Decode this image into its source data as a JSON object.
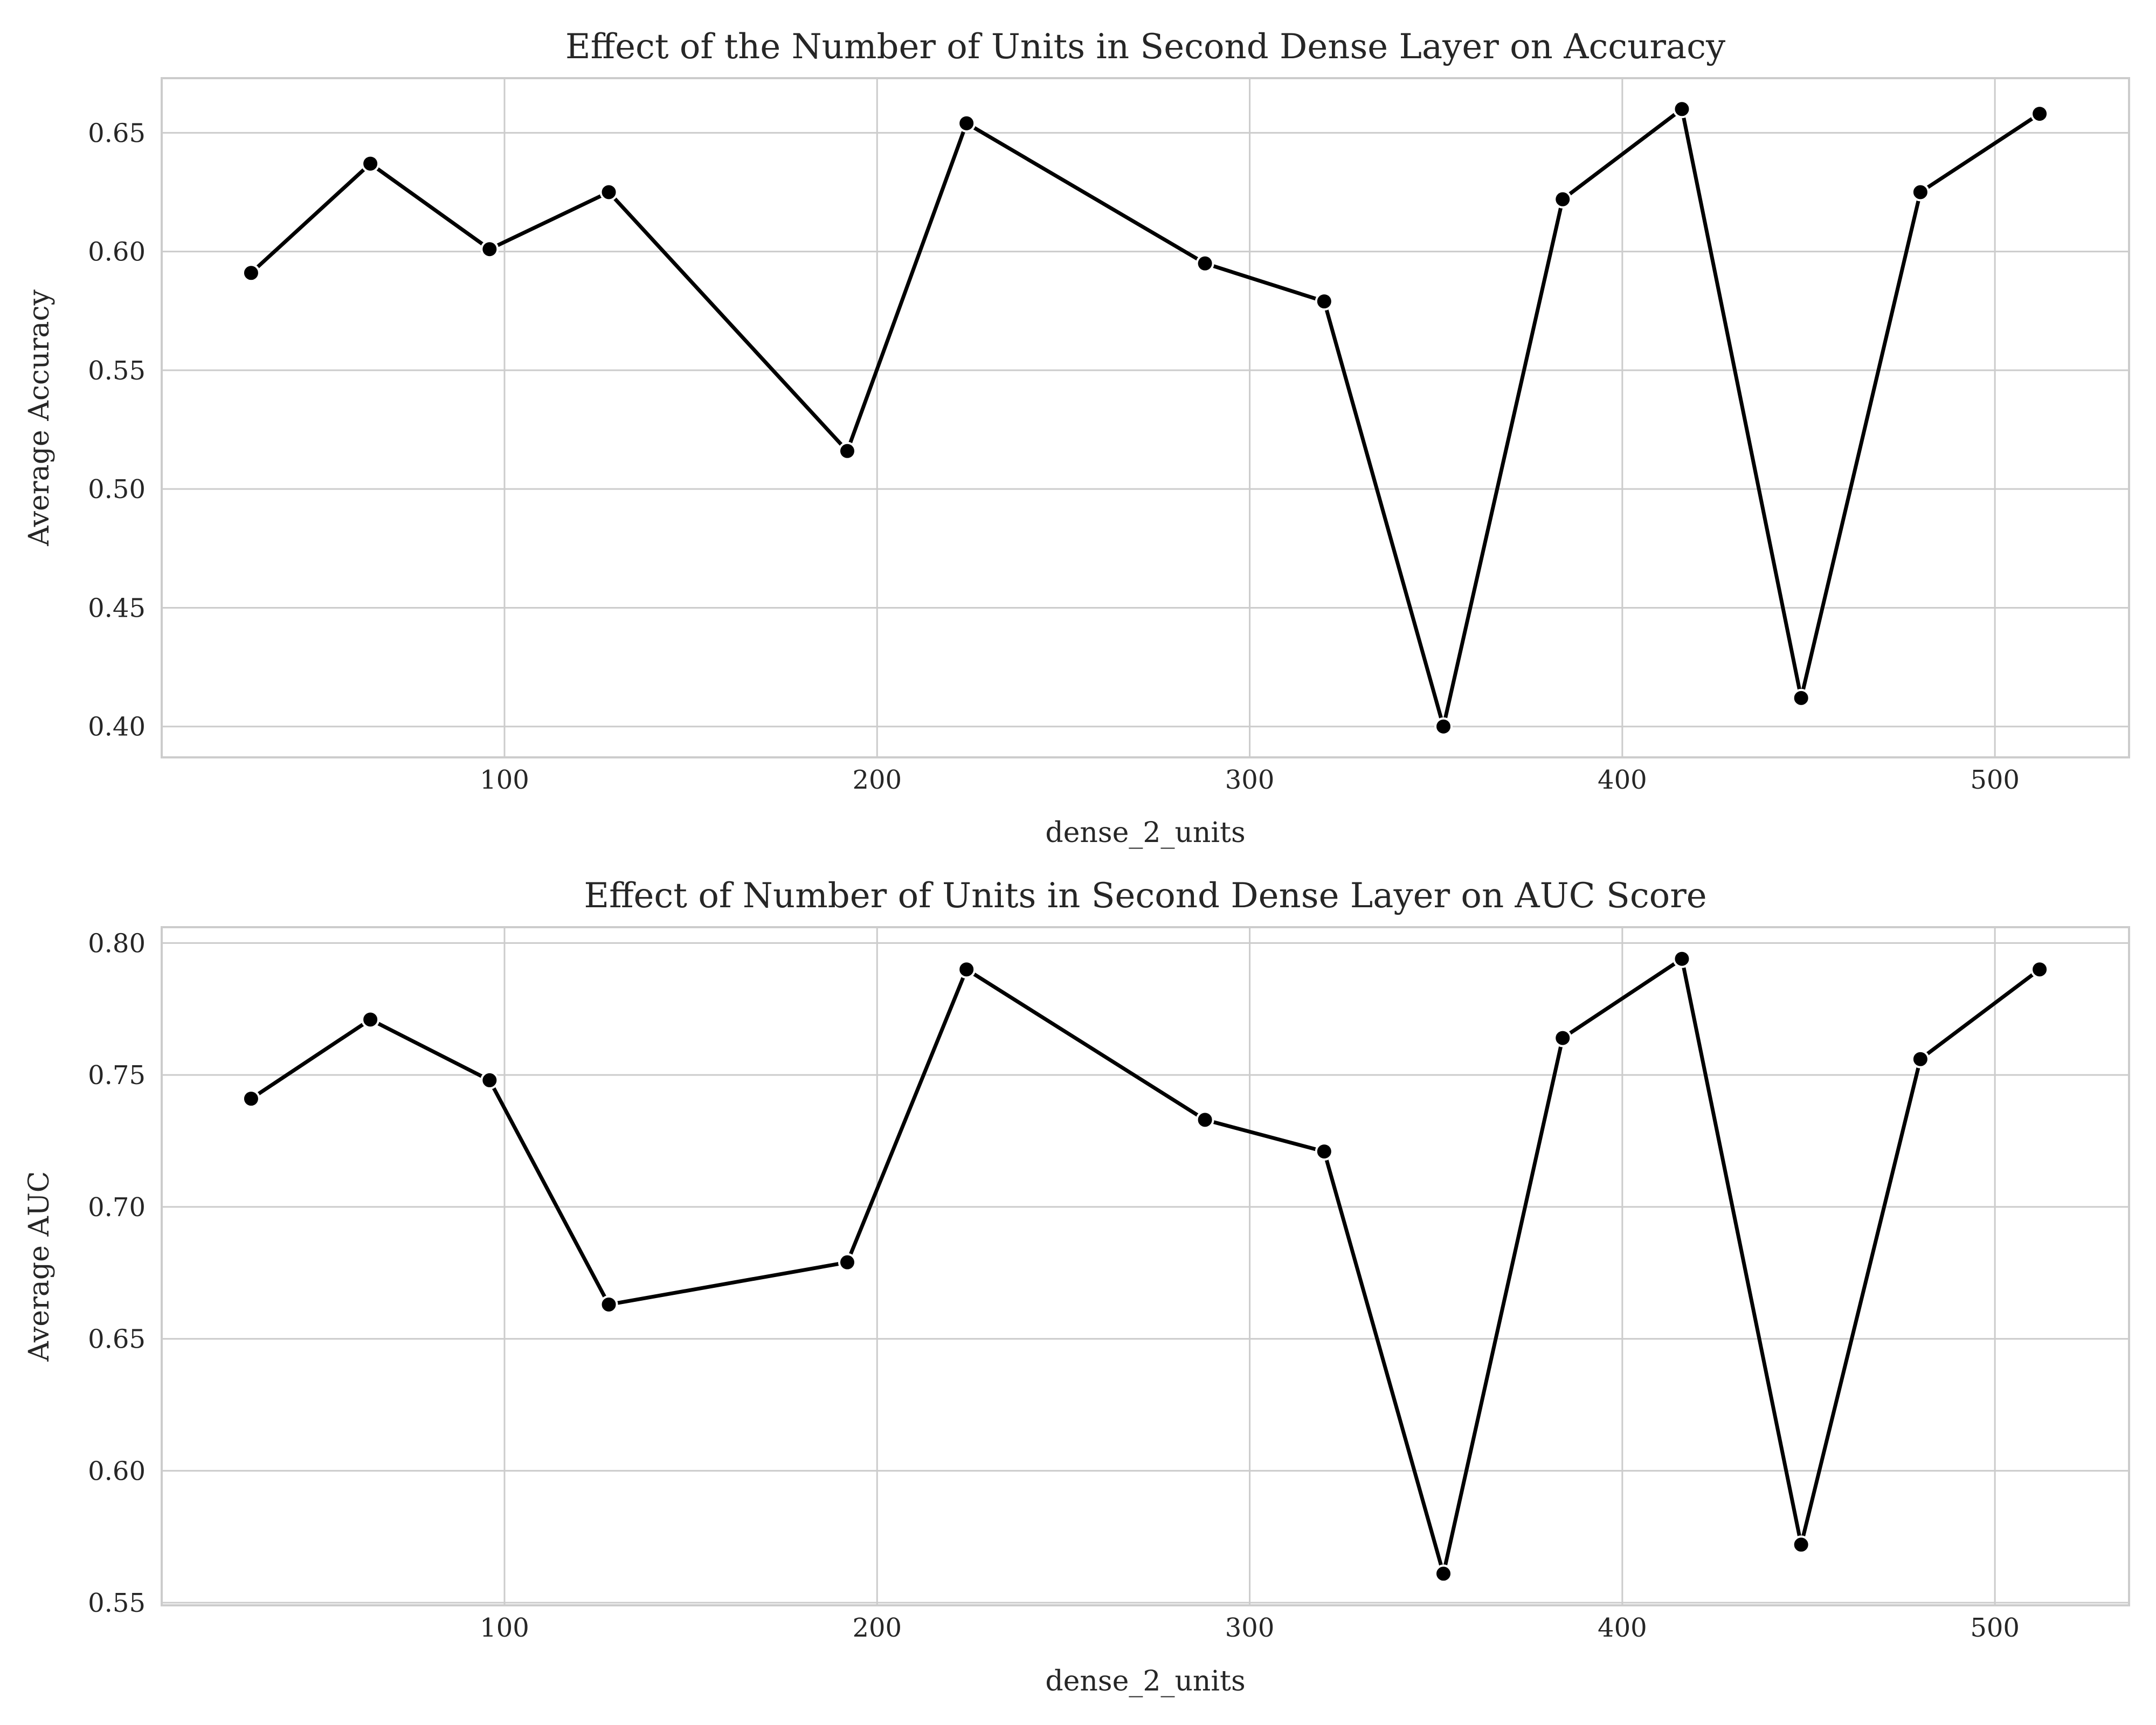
{
  "chart_data": [
    {
      "type": "line",
      "title": "Effect of the Number of Units in Second Dense Layer on Accuracy",
      "xlabel": "dense_2_units",
      "ylabel": "Average Accuracy",
      "x": [
        32,
        64,
        96,
        128,
        192,
        224,
        288,
        320,
        352,
        384,
        416,
        448,
        480,
        512
      ],
      "y": [
        0.591,
        0.637,
        0.601,
        0.625,
        0.516,
        0.654,
        0.595,
        0.579,
        0.4,
        0.622,
        0.66,
        0.412,
        0.625,
        0.658
      ],
      "xlim": [
        8,
        536
      ],
      "ylim": [
        0.387,
        0.673
      ],
      "xticks": [
        100,
        200,
        300,
        400,
        500
      ],
      "yticks": [
        0.4,
        0.45,
        0.5,
        0.55,
        0.6,
        0.65
      ],
      "ytick_labels": [
        "0.40",
        "0.45",
        "0.50",
        "0.55",
        "0.60",
        "0.65"
      ],
      "grid": true
    },
    {
      "type": "line",
      "title": "Effect of Number of Units in Second Dense Layer on AUC Score",
      "xlabel": "dense_2_units",
      "ylabel": "Average AUC",
      "x": [
        32,
        64,
        96,
        128,
        192,
        224,
        288,
        320,
        352,
        384,
        416,
        448,
        480,
        512
      ],
      "y": [
        0.741,
        0.771,
        0.748,
        0.663,
        0.679,
        0.79,
        0.733,
        0.721,
        0.561,
        0.764,
        0.794,
        0.572,
        0.756,
        0.79
      ],
      "xlim": [
        8,
        536
      ],
      "ylim": [
        0.549,
        0.806
      ],
      "xticks": [
        100,
        200,
        300,
        400,
        500
      ],
      "yticks": [
        0.55,
        0.6,
        0.65,
        0.7,
        0.75,
        0.8
      ],
      "ytick_labels": [
        "0.55",
        "0.60",
        "0.65",
        "0.70",
        "0.75",
        "0.80"
      ],
      "grid": true
    }
  ]
}
